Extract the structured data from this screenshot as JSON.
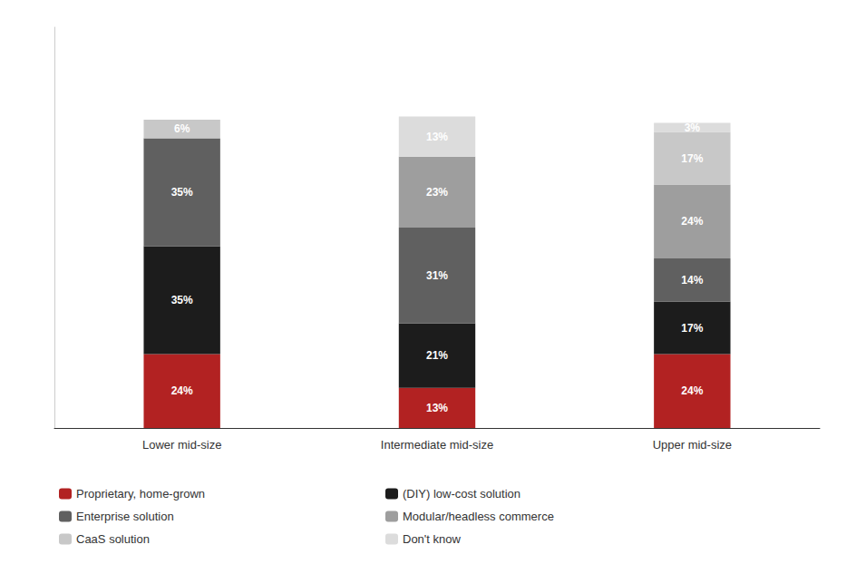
{
  "chart_data": {
    "type": "bar",
    "stacked": true,
    "categories": [
      "Lower mid-size",
      "Intermediate mid-size",
      "Upper mid-size"
    ],
    "series": [
      {
        "name": "Proprietary, home-grown",
        "color": "#b22222",
        "values": [
          24,
          13,
          24
        ],
        "value_labels": [
          "24%",
          "13%",
          "24%"
        ]
      },
      {
        "name": "(DIY) low-cost solution",
        "color": "#1c1c1c",
        "values": [
          35,
          21,
          17
        ],
        "value_labels": [
          "35%",
          "21%",
          "17%"
        ]
      },
      {
        "name": "Enterprise solution",
        "color": "#606060",
        "values": [
          35,
          31,
          14
        ],
        "value_labels": [
          "35%",
          "31%",
          "14%"
        ]
      },
      {
        "name": "Modular/headless commerce",
        "color": "#9e9e9e",
        "values": [
          0,
          23,
          24
        ],
        "value_labels": [
          null,
          "23%",
          "24%"
        ]
      },
      {
        "name": "CaaS solution",
        "color": "#c8c8c8",
        "values": [
          6,
          0,
          17
        ],
        "value_labels": [
          "6%",
          null,
          "17%"
        ]
      },
      {
        "name": "Don't know",
        "color": "#dcdcdc",
        "values": [
          0,
          13,
          3
        ],
        "value_labels": [
          null,
          "13%",
          "3%"
        ]
      }
    ],
    "ylim": [
      0,
      130
    ],
    "data_labels": true,
    "tick_labels": "x",
    "grid": false,
    "legend": "bottom"
  }
}
